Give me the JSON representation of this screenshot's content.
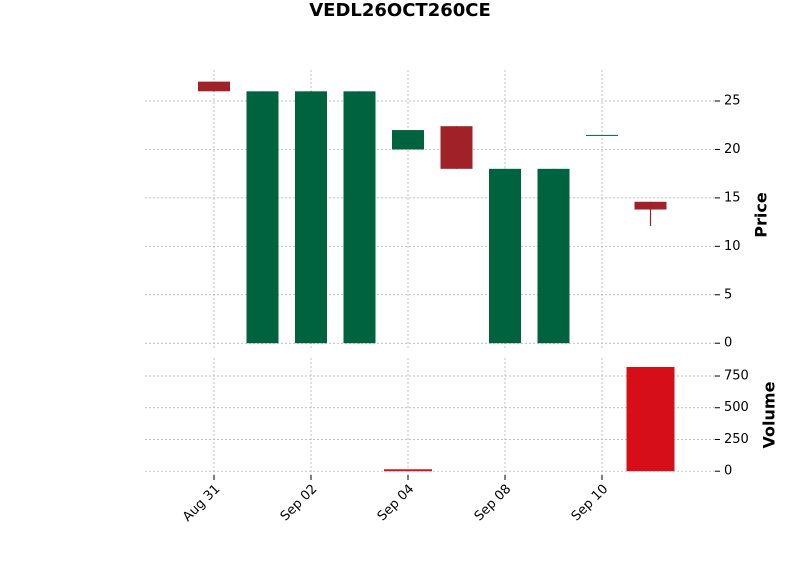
{
  "chart_data": {
    "type": "candlestick",
    "title": "VEDL26OCT260CE",
    "categories": [
      "Aug 31",
      null,
      "Sep 02",
      null,
      "Sep 04",
      null,
      "Sep 08",
      null,
      "Sep 10",
      null
    ],
    "open": [
      27,
      0,
      0,
      0,
      20,
      22.4,
      0,
      0,
      21.5,
      14.6
    ],
    "high": [
      27,
      26,
      26,
      26,
      22,
      22.4,
      18,
      18,
      21.5,
      14.6
    ],
    "low": [
      26,
      0,
      0,
      0,
      20,
      18,
      0,
      0,
      21.5,
      12.1
    ],
    "close": [
      26,
      26,
      26,
      26,
      22,
      18,
      18,
      18,
      21.5,
      13.8
    ],
    "volume": [
      0,
      0,
      0,
      0,
      15,
      0,
      0,
      0,
      0,
      821
    ],
    "up_color": "#006340",
    "down_color": "#a02128",
    "volume_color": "#d50e1a",
    "ylabel": "Price",
    "ylim": [
      -0.7,
      28.2
    ],
    "yticks": [
      0,
      5,
      10,
      15,
      20,
      25
    ],
    "volume_ylabel": "Volume",
    "volume_ylim": [
      -30,
      892
    ],
    "volume_yticks": [
      0,
      250,
      500,
      750
    ],
    "grid": true
  }
}
